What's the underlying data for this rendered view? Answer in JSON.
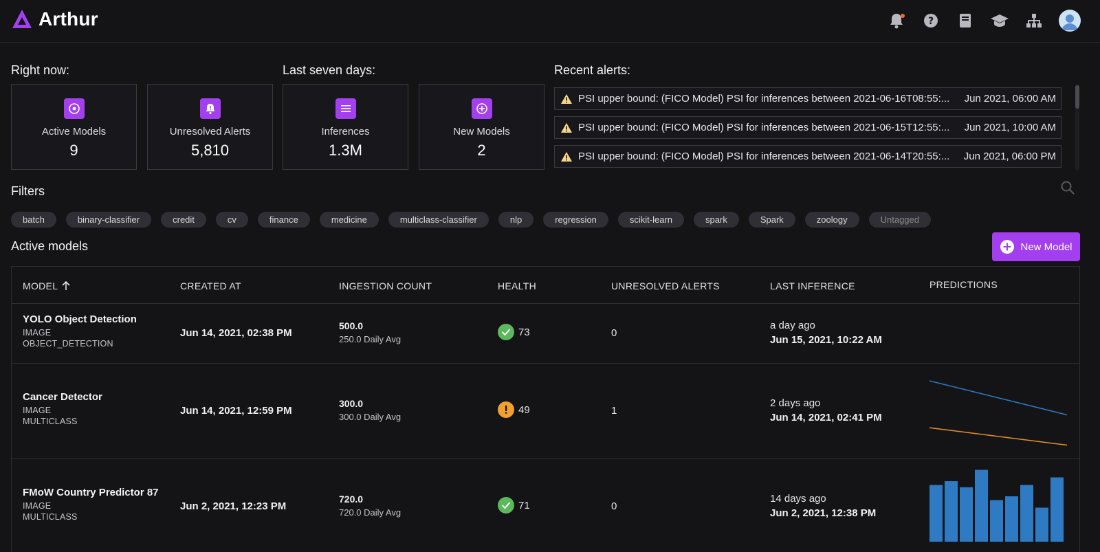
{
  "app": {
    "name": "Arthur"
  },
  "header": {
    "icons": [
      "bell-icon",
      "help-icon",
      "docs-icon",
      "academy-icon",
      "org-chart-icon"
    ],
    "has_notification": true
  },
  "sections": {
    "right_now": "Right now:",
    "last_seven_days": "Last seven days:",
    "recent_alerts": "Recent alerts:",
    "filters": "Filters",
    "active_models": "Active models"
  },
  "stats": [
    {
      "label": "Active Models",
      "value": "9",
      "icon": "target-icon"
    },
    {
      "label": "Unresolved Alerts",
      "value": "5,810",
      "icon": "bell-alert-icon"
    },
    {
      "label": "Inferences",
      "value": "1.3M",
      "icon": "list-icon"
    },
    {
      "label": "New Models",
      "value": "2",
      "icon": "plus-circle-icon"
    }
  ],
  "alerts": [
    {
      "text": "PSI upper bound: (FICO Model) PSI for inferences between 2021-06-16T08:55:...",
      "time": "Jun 2021, 06:00 AM"
    },
    {
      "text": "PSI upper bound: (FICO Model) PSI for inferences between 2021-06-15T12:55:...",
      "time": "Jun 2021, 10:00 AM"
    },
    {
      "text": "PSI upper bound: (FICO Model) PSI for inferences between 2021-06-14T20:55:...",
      "time": "Jun 2021, 06:00 PM"
    }
  ],
  "tags": [
    "batch",
    "binary-classifier",
    "credit",
    "cv",
    "finance",
    "medicine",
    "multiclass-classifier",
    "nlp",
    "regression",
    "scikit-learn",
    "spark",
    "Spark",
    "zoology",
    "Untagged"
  ],
  "new_model_label": "New Model",
  "table": {
    "columns": {
      "model": "MODEL",
      "created": "CREATED AT",
      "ingestion": "INGESTION COUNT",
      "health": "HEALTH",
      "alerts": "UNRESOLVED ALERTS",
      "last": "LAST INFERENCE",
      "predictions": "PREDICTIONS"
    },
    "rows": [
      {
        "name": "YOLO Object Detection",
        "input": "IMAGE",
        "output": "OBJECT_DETECTION",
        "created": "Jun 14, 2021, 02:38 PM",
        "ingestion": "500.0",
        "daily_avg": "250.0 Daily Avg",
        "health_status": "good",
        "health_score": "73",
        "unresolved": "0",
        "last_relative": "a day ago",
        "last_absolute": "Jun 15, 2021, 10:22 AM"
      },
      {
        "name": "Cancer Detector",
        "input": "IMAGE",
        "output": "MULTICLASS",
        "created": "Jun 14, 2021, 12:59 PM",
        "ingestion": "300.0",
        "daily_avg": "300.0 Daily Avg",
        "health_status": "warning",
        "health_score": "49",
        "unresolved": "1",
        "last_relative": "2 days ago",
        "last_absolute": "Jun 14, 2021, 02:41 PM"
      },
      {
        "name": "FMoW Country Predictor 87",
        "input": "IMAGE",
        "output": "MULTICLASS",
        "created": "Jun 2, 2021, 12:23 PM",
        "ingestion": "720.0",
        "daily_avg": "720.0 Daily Avg",
        "health_status": "good",
        "health_score": "71",
        "unresolved": "0",
        "last_relative": "14 days ago",
        "last_absolute": "Jun 2, 2021, 12:38 PM"
      }
    ]
  },
  "colors": {
    "accent": "#a43ff0",
    "health_good": "#5cb85c",
    "health_warning": "#f0a030",
    "series_blue": "#2e7bc4",
    "series_orange": "#e8902a",
    "alert_warning": "#f5d58a"
  },
  "sparklines": {
    "cancer_detector": [
      {
        "values": [
          0.9,
          0.45
        ]
      },
      {
        "values": [
          0.28,
          0.05
        ]
      }
    ],
    "fmow_bars": [
      0.75,
      0.8,
      0.72,
      0.95,
      0.55,
      0.6,
      0.75,
      0.45,
      0.85
    ]
  }
}
